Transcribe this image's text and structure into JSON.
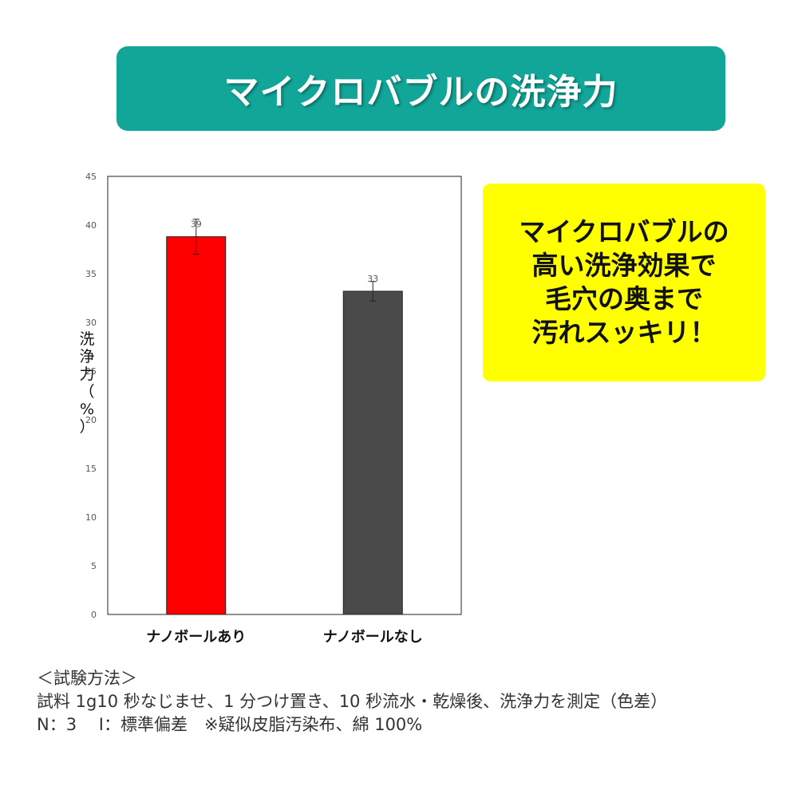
{
  "title": "マイクロバブルの洗浄力",
  "callout": {
    "lines": [
      "マイクロバブルの",
      "高い洗浄効果で",
      "毛穴の奥まで",
      "汚れスッキリ！"
    ]
  },
  "chart_data": {
    "type": "bar",
    "categories": [
      "ナノボールあり",
      "ナノボールなし"
    ],
    "values": [
      38.8,
      33.2
    ],
    "data_labels": [
      "39",
      "33"
    ],
    "error": [
      1.8,
      1.0
    ],
    "ylabel": "洗浄力（%）",
    "ylabel_chars": [
      "洗",
      "浄",
      "力",
      "（",
      "%",
      "）"
    ],
    "yticks": [
      0,
      5,
      10,
      15,
      20,
      25,
      30,
      35,
      40,
      45
    ],
    "ylim": [
      0,
      45
    ],
    "colors": [
      "#ff0000",
      "#4a4a4a"
    ],
    "grid": false,
    "legend": "none"
  },
  "method": {
    "heading": "＜試験方法＞",
    "line1": "試料 1g10 秒なじませ、1 分つけ置き、10 秒流水・乾燥後、洗浄力を測定（色差）",
    "line2": "N：3　 I：標準偏差　※疑似皮脂汚染布、綿 100%"
  }
}
